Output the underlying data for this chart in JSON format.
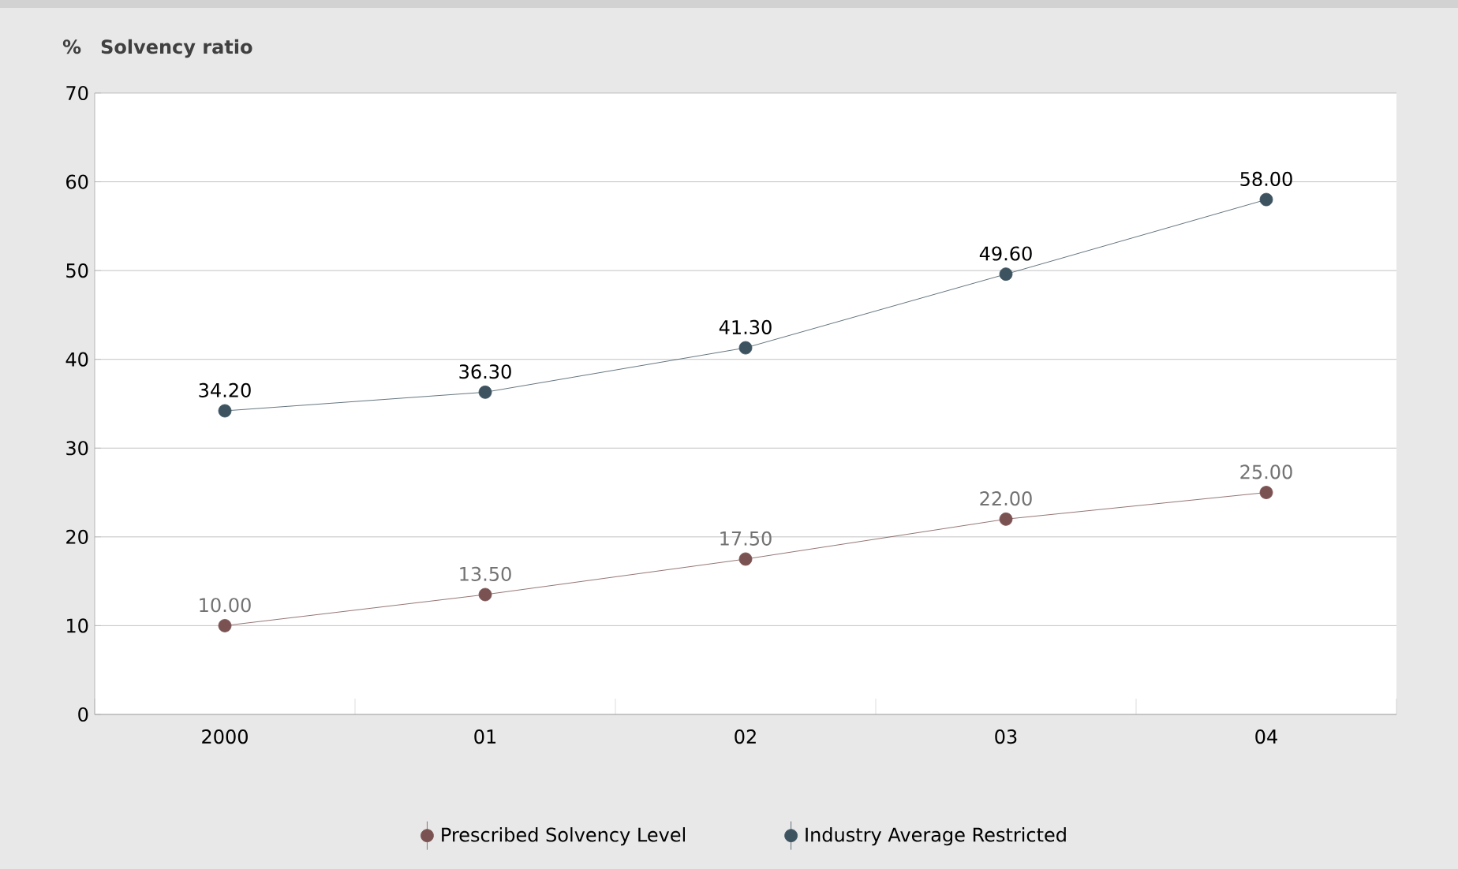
{
  "chart_data": {
    "type": "line",
    "title": "Solvency ratio",
    "annotations": [
      "%"
    ],
    "categories": [
      "2000",
      "01",
      "02",
      "03",
      "04"
    ],
    "series": [
      {
        "name": "Prescribed Solvency Level",
        "color": "#7b5252",
        "values": [
          10.0,
          13.5,
          17.5,
          22.0,
          25.0
        ],
        "value_labels": [
          "10.00",
          "13.50",
          "17.50",
          "22.00",
          "25.00"
        ]
      },
      {
        "name": "Industry Average Restricted",
        "color": "#3d5360",
        "values": [
          34.2,
          36.3,
          41.3,
          49.6,
          58.0
        ],
        "value_labels": [
          "34.20",
          "36.30",
          "41.30",
          "49.60",
          "58.00"
        ]
      }
    ],
    "ylim": [
      0,
      70
    ],
    "yticks": [
      0,
      10,
      20,
      30,
      40,
      50,
      60,
      70
    ],
    "grid": "y",
    "legend": "bottom",
    "marker": "circle",
    "line_style": "solid"
  }
}
